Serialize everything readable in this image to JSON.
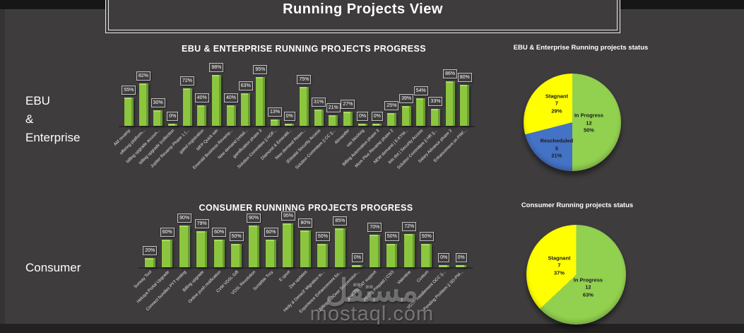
{
  "page": {
    "title": "Running Projects View",
    "watermark_ar": "مستقل",
    "watermark_domain": "mostaql.com"
  },
  "rows": {
    "ebu_label_lines": [
      "EBU",
      "&",
      "Enterprise"
    ],
    "consumer_label": "Consumer"
  },
  "colors": {
    "background": "#3E3C3D",
    "bar_green": "#8CC63F",
    "pie_green": "#92D050",
    "pie_yellow": "#FFFF00",
    "pie_blue": "#4472C4"
  },
  "chart_data": [
    {
      "type": "bar",
      "title": "EBU & ENTERPRISE RUNNING PROJECTS PROGRESS",
      "categories": [
        "AM revamp",
        "offering platform...",
        "billing upgrade  accoun...",
        "billing upgrade (collection",
        "Jupiter Revamp Phase 1 (...",
        "gated registration",
        "MFP Quick win",
        "Emerald Business Revamp...",
        "New demand (retail...",
        "gamification phase 3",
        "Solution Committee || HOF...",
        "Diamond & Emerald...",
        "New demand Reten...",
        "(Etisalat Security Access",
        "Solution Committee || CC ||...",
        "Alexander",
        "vas blocking",
        "Billing Automation phase 3",
        "More Plus Revamp phase 2",
        "NEW demand | E-KYM...",
        "lets dot | Security Access",
        "Solution Committee || HR ||...",
        "Salary Advance phase 2",
        "Enhancement on PRF..."
      ],
      "values": [
        55,
        82,
        30,
        0,
        72,
        40,
        98,
        40,
        63,
        95,
        13,
        0,
        75,
        31,
        21,
        27,
        0,
        0,
        25,
        39,
        54,
        33,
        86,
        80
      ],
      "data_label_suffix": "%",
      "ylim": [
        0,
        100
      ],
      "bar_color": "#8CC63F",
      "legend": "none",
      "grid": false
    },
    {
      "type": "pie",
      "title": "EBU & Enterprise Running projects status",
      "slices": [
        {
          "label": "In Progress",
          "count": 12,
          "pct": 50,
          "color": "#92D050"
        },
        {
          "label": "Rescheduled",
          "count": 5,
          "pct": 21,
          "color": "#4472C4"
        },
        {
          "label": "Stagnant",
          "count": 7,
          "pct": 29,
          "color": "#FFFF00"
        }
      ]
    },
    {
      "type": "bar",
      "title": "CONSUMER RUNNINNG PROJECTS PROGRESS",
      "categories": [
        "Surway Tool",
        "Hekaya Portal Upgrade",
        "Connect bundles PYT testing",
        "Billing upgrade",
        "Online push notification",
        "CVM VDSL Gift",
        "VDSL Revolution",
        "Scrabble Troy",
        "E  sport",
        "Zee updates",
        "Hedy & Demo3' Migration to...",
        "Experience Enhancement for...",
        "Billing CutOver Suspension...",
        "(nat 2)|| UAT support",
        "P2S|| Prepaid | CSO",
        "Valentine",
        "Costum",
        "VDSL installement OCC ||...",
        "Pending Problem || SD-PM..."
      ],
      "values": [
        20,
        60,
        90,
        79,
        60,
        50,
        90,
        60,
        95,
        80,
        50,
        85,
        0,
        70,
        50,
        72,
        50,
        0,
        0
      ],
      "data_label_suffix": "%",
      "ylim": [
        0,
        100
      ],
      "bar_color": "#8CC63F",
      "legend": "none",
      "grid": false
    },
    {
      "type": "pie",
      "title": "Consumer Running projects status",
      "slices": [
        {
          "label": "In Progress",
          "count": 12,
          "pct": 63,
          "color": "#92D050"
        },
        {
          "label": "Stagnant",
          "count": 7,
          "pct": 37,
          "color": "#FFFF00"
        }
      ]
    }
  ]
}
